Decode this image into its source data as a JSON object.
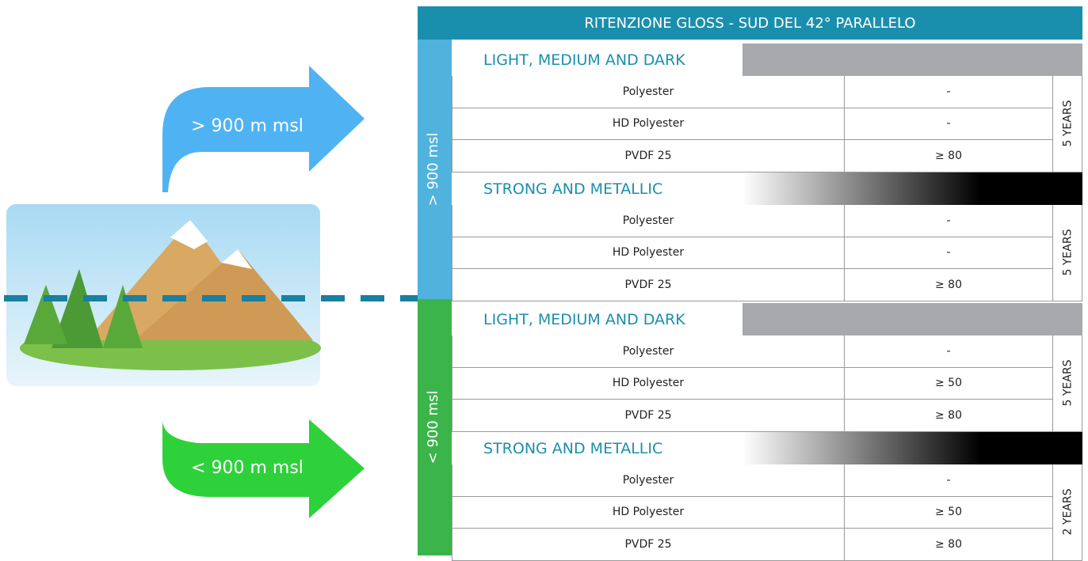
{
  "title": "RITENZIONE GLOSS - SUD DEL 42° PARALLELO",
  "arrows": [
    {
      "label": "> 900 m  msl"
    },
    {
      "label": "< 900 m  msl"
    }
  ],
  "sections": [
    {
      "label": "> 900 msl",
      "groups": [
        {
          "heading": "LIGHT, MEDIUM AND DARK",
          "rows": [
            [
              "Polyester",
              "-"
            ],
            [
              "HD Polyester",
              "-"
            ],
            [
              "PVDF 25",
              "≥ 80"
            ]
          ],
          "period": "5 YEARS"
        },
        {
          "heading": "STRONG AND METALLIC",
          "rows": [
            [
              "Polyester",
              "-"
            ],
            [
              "HD Polyester",
              "-"
            ],
            [
              "PVDF 25",
              "≥ 80"
            ]
          ],
          "period": "5 YEARS"
        }
      ]
    },
    {
      "label": "< 900 msl",
      "groups": [
        {
          "heading": "LIGHT, MEDIUM AND DARK",
          "rows": [
            [
              "Polyester",
              "-"
            ],
            [
              "HD Polyester",
              "≥ 50"
            ],
            [
              "PVDF 25",
              "≥ 80"
            ]
          ],
          "period": "5 YEARS"
        },
        {
          "heading": "STRONG AND METALLIC",
          "rows": [
            [
              "Polyester",
              "-"
            ],
            [
              "HD Polyester",
              "≥ 50"
            ],
            [
              "PVDF 25",
              "≥ 80"
            ]
          ],
          "period": "2 YEARS"
        }
      ]
    }
  ]
}
